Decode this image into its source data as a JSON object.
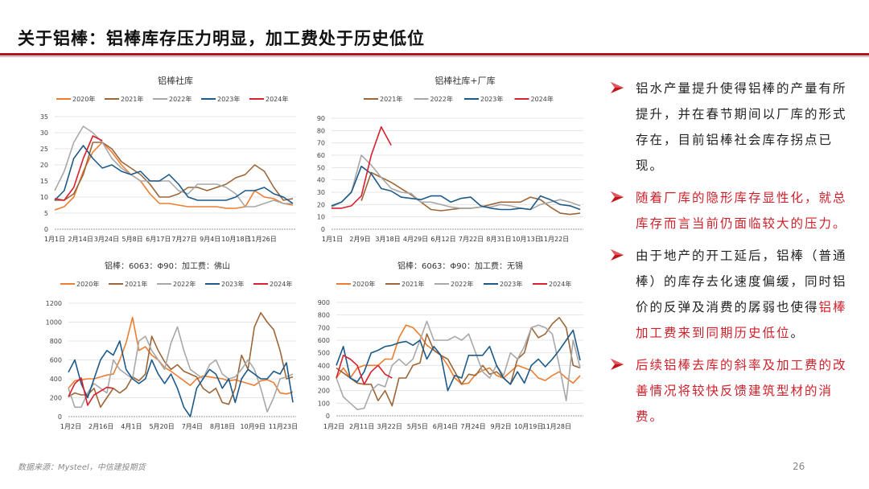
{
  "header": {
    "title": "关于铝棒：铝棒库存压力明显，加工费处于历史低位"
  },
  "colors": {
    "accent": "#b3121c",
    "2020年": "#ED7D31",
    "2021年": "#9C6638",
    "2022年": "#A8A8A8",
    "2023年": "#1D5A8A",
    "2024年": "#D9202F"
  },
  "bullets": [
    {
      "icon": "arrow-right-icon",
      "parts": [
        {
          "text": "铝水产量提升使得铝棒的产量有所提升，并在春节期间以厂库的形式存在，目前铝棒社会库存拐点已现。",
          "red": false
        }
      ]
    },
    {
      "icon": "arrow-right-icon",
      "parts": [
        {
          "text": "随着厂库的隐形库存显性化，就总库存而言当前仍面临较大的压力。",
          "red": true
        }
      ]
    },
    {
      "icon": "arrow-right-icon",
      "parts": [
        {
          "text": "由于地产的开工延后，铝棒（普通棒）的库存去化速度偏缓，同时铝价的反弹及消费的孱弱也使得",
          "red": false
        },
        {
          "text": "铝棒加工费来到同期历史低位",
          "red": true
        },
        {
          "text": "。",
          "red": false
        }
      ]
    },
    {
      "icon": "arrow-right-icon",
      "parts": [
        {
          "text": "后续铝棒去库的斜率及加工费的改善情况将较快反馈建筑型材的消费。",
          "red": true
        }
      ]
    }
  ],
  "footer": {
    "source": "数据来源：Mysteel，中信建投期货",
    "page_number": "26"
  },
  "chart_data": [
    {
      "type": "line",
      "title": "铝棒社库",
      "ylim": [
        0,
        35
      ],
      "yticks": [
        0,
        5,
        10,
        15,
        20,
        25,
        30,
        35
      ],
      "grid": true,
      "legend": "top",
      "x_ticks": [
        "1月1日",
        "2月14日",
        "3月24日",
        "5月8日",
        "6月17日",
        "7月27日",
        "9月4日",
        "10月18日",
        "11月26日"
      ],
      "series": [
        {
          "name": "2020年",
          "values": [
            6,
            7,
            10,
            18,
            24,
            27,
            24,
            20,
            17,
            15,
            11,
            8,
            8,
            7.5,
            7,
            7,
            7,
            7,
            6.5,
            6.5,
            7,
            12,
            10,
            9.5,
            8,
            7.5
          ]
        },
        {
          "name": "2021年",
          "values": [
            9,
            9,
            11,
            17,
            27,
            27,
            25,
            21,
            19,
            17,
            14,
            10,
            10,
            11,
            13,
            13,
            12,
            13,
            14,
            16,
            17,
            20,
            18,
            13,
            9,
            9.5
          ]
        },
        {
          "name": "2022年",
          "values": [
            12,
            18,
            27,
            32,
            30,
            27,
            22,
            19,
            17,
            15,
            15,
            15,
            15,
            12,
            11,
            14,
            14,
            14,
            13,
            11,
            7,
            7,
            8,
            9,
            8,
            8
          ]
        },
        {
          "name": "2023年",
          "values": [
            9,
            12,
            22,
            26,
            22,
            19,
            20,
            18,
            17,
            18,
            15,
            15,
            17,
            14,
            10,
            9,
            9,
            9,
            9,
            10,
            12,
            12,
            13,
            11,
            10,
            8
          ]
        },
        {
          "name": "2024年",
          "values": [
            9.5,
            9,
            13,
            22,
            29,
            27.5
          ]
        }
      ]
    },
    {
      "type": "line",
      "title": "铝棒社库+厂库",
      "ylim": [
        0,
        90
      ],
      "yticks": [
        0,
        10,
        20,
        30,
        40,
        50,
        60,
        70,
        80,
        90
      ],
      "grid": true,
      "legend": "top",
      "x_ticks": [
        "1月1日",
        "2月9日",
        "3月18日",
        "4月29日",
        "6月12日",
        "7月22日",
        "8月31日",
        "10月13日",
        "11月22日"
      ],
      "series": [
        {
          "name": "2021年",
          "values": [
            null,
            null,
            null,
            23,
            46,
            42,
            38,
            33,
            28,
            22,
            16,
            15,
            16,
            17,
            17,
            18,
            20,
            22,
            22,
            22,
            26,
            24,
            18,
            13,
            12,
            13
          ]
        },
        {
          "name": "2022年",
          "values": [
            18,
            22,
            30,
            60,
            52,
            42,
            33,
            30,
            29,
            22,
            22,
            20,
            18,
            17,
            17,
            18,
            18,
            20,
            19,
            17,
            16,
            20,
            22,
            24,
            22,
            19
          ]
        },
        {
          "name": "2023年",
          "values": [
            19,
            22,
            30,
            51,
            45,
            33,
            31,
            26,
            25,
            24,
            27,
            27,
            22,
            25,
            26,
            19,
            17,
            16,
            16,
            17,
            16,
            27,
            24,
            20,
            19,
            16
          ]
        },
        {
          "name": "2024年",
          "values": [
            17,
            17,
            19,
            27,
            60,
            83,
            68
          ]
        }
      ]
    },
    {
      "type": "line",
      "title": "铝棒：6063：Φ90：加工费：佛山",
      "ylim": [
        0,
        1200
      ],
      "yticks": [
        0,
        200,
        400,
        600,
        800,
        1000,
        1200
      ],
      "grid": true,
      "legend": "top",
      "x_ticks": [
        "1月2日",
        "2月16日",
        "4月1日",
        "5月20日",
        "7月4日",
        "8月18日",
        "10月9日",
        "11月23日"
      ],
      "series": [
        {
          "name": "2020年",
          "values": [
            300,
            380,
            390,
            400,
            400,
            420,
            440,
            450,
            600,
            780,
            1050,
            700,
            740,
            650,
            600,
            520,
            480,
            430,
            380,
            330,
            400,
            430,
            420,
            410,
            400,
            380,
            390,
            370,
            350,
            330,
            380,
            390,
            360,
            250,
            240,
            260
          ]
        },
        {
          "name": "2021年",
          "values": [
            210,
            250,
            230,
            230,
            300,
            100,
            200,
            300,
            250,
            300,
            420,
            380,
            450,
            850,
            700,
            580,
            500,
            550,
            480,
            450,
            420,
            300,
            250,
            300,
            150,
            130,
            300,
            650,
            500,
            950,
            1100,
            1000,
            920,
            700,
            400,
            420
          ]
        },
        {
          "name": "2022年",
          "values": [
            300,
            100,
            100,
            250,
            350,
            300,
            250,
            600,
            500,
            450,
            400,
            800,
            850,
            700,
            600,
            500,
            780,
            950,
            700,
            500,
            450,
            400,
            550,
            600,
            450,
            400,
            420,
            500,
            600,
            500,
            300,
            50,
            200,
            400,
            420,
            450
          ]
        },
        {
          "name": "2023年",
          "values": [
            470,
            600,
            350,
            200,
            400,
            600,
            700,
            650,
            800,
            500,
            400,
            350,
            400,
            600,
            450,
            350,
            450,
            300,
            100,
            0,
            300,
            400,
            500,
            450,
            300,
            400,
            150,
            400,
            500,
            450,
            400,
            400,
            480,
            450,
            570,
            150
          ]
        },
        {
          "name": "2024年",
          "values": [
            210,
            350,
            410,
            120,
            230,
            270,
            310,
            300
          ]
        }
      ]
    },
    {
      "type": "line",
      "title": "铝棒：6063：Φ90：加工费：无锡",
      "ylim": [
        0,
        900
      ],
      "yticks": [
        0,
        100,
        200,
        300,
        400,
        500,
        600,
        700,
        800,
        900
      ],
      "grid": true,
      "legend": "top",
      "x_ticks": [
        "1月2日",
        "2月11日",
        "3月22日",
        "5月5日",
        "6月14日",
        "7月24日",
        "9月2日",
        "10月19日",
        "11月28日"
      ],
      "series": [
        {
          "name": "2020年",
          "values": [
            300,
            380,
            300,
            380,
            400,
            400,
            400,
            450,
            450,
            620,
            720,
            700,
            640,
            560,
            520,
            480,
            400,
            300,
            250,
            260,
            330,
            360,
            380,
            320,
            300,
            350,
            400,
            380,
            360,
            300,
            280,
            320,
            350,
            300,
            260,
            320
          ]
        },
        {
          "name": "2021年",
          "values": [
            380,
            340,
            300,
            260,
            250,
            250,
            120,
            200,
            80,
            300,
            300,
            400,
            420,
            650,
            520,
            480,
            450,
            350,
            250,
            330,
            320,
            400,
            330,
            350,
            300,
            250,
            450,
            500,
            700,
            620,
            650,
            730,
            780,
            700,
            400,
            380
          ]
        },
        {
          "name": "2022年",
          "values": [
            300,
            150,
            100,
            50,
            60,
            200,
            250,
            230,
            400,
            450,
            400,
            450,
            600,
            750,
            600,
            600,
            600,
            630,
            600,
            650,
            500,
            350,
            300,
            400,
            320,
            500,
            450,
            550,
            700,
            720,
            700,
            650,
            400,
            120,
            600,
            380
          ]
        },
        {
          "name": "2023年",
          "values": [
            400,
            550,
            300,
            270,
            350,
            500,
            520,
            550,
            560,
            580,
            590,
            560,
            600,
            450,
            550,
            480,
            200,
            320,
            300,
            480,
            480,
            480,
            550,
            400,
            300,
            250,
            350,
            260,
            400,
            450,
            390,
            450,
            520,
            600,
            680,
            440
          ]
        },
        {
          "name": "2024年",
          "values": [
            300,
            480,
            450,
            400,
            250,
            350,
            400,
            330,
            300
          ]
        }
      ]
    }
  ]
}
